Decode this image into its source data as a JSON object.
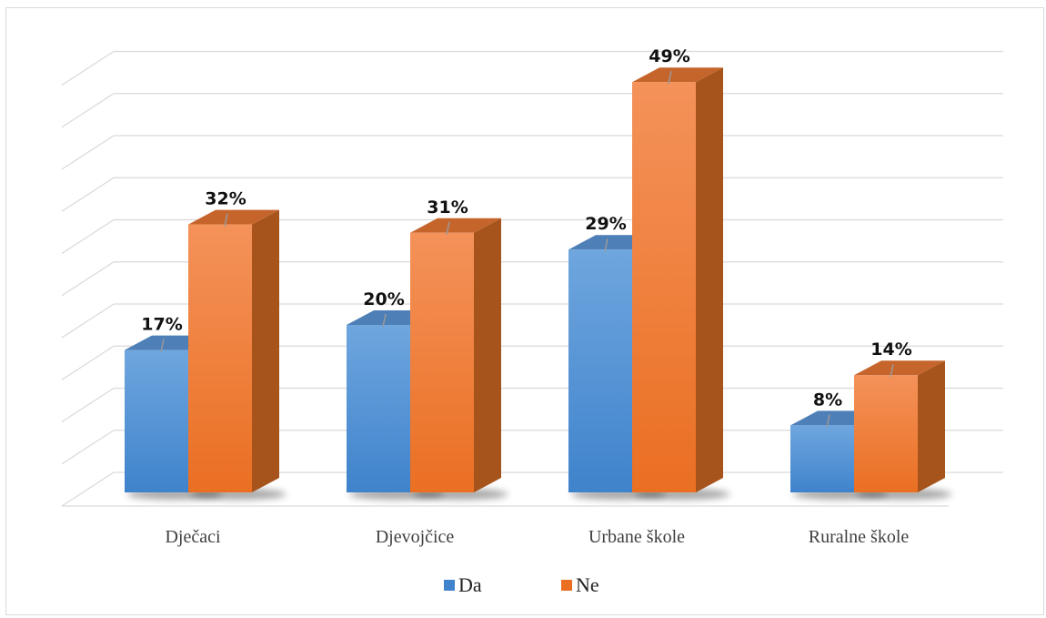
{
  "chart_data": {
    "type": "bar",
    "categories": [
      "Dječaci",
      "Djevojčice",
      "Urbane škole",
      "Ruralne škole"
    ],
    "series": [
      {
        "name": "Da",
        "values": [
          17,
          20,
          29,
          8
        ],
        "labels": [
          "17%",
          "20%",
          "29%",
          "8%"
        ]
      },
      {
        "name": "Ne",
        "values": [
          32,
          31,
          49,
          14
        ],
        "labels": [
          "32%",
          "31%",
          "49%",
          "14%"
        ]
      }
    ],
    "ylim": [
      0,
      50
    ],
    "grid": true,
    "legend_position": "bottom",
    "colors": {
      "Da": {
        "front_top": "#6fa6de",
        "front_bottom": "#3f83cc",
        "side": "#2f5f96",
        "top": "#4e7fb6"
      },
      "Ne": {
        "front_top": "#f4925a",
        "front_bottom": "#ea6f22",
        "side": "#a6531c",
        "top": "#c6652b"
      }
    }
  }
}
